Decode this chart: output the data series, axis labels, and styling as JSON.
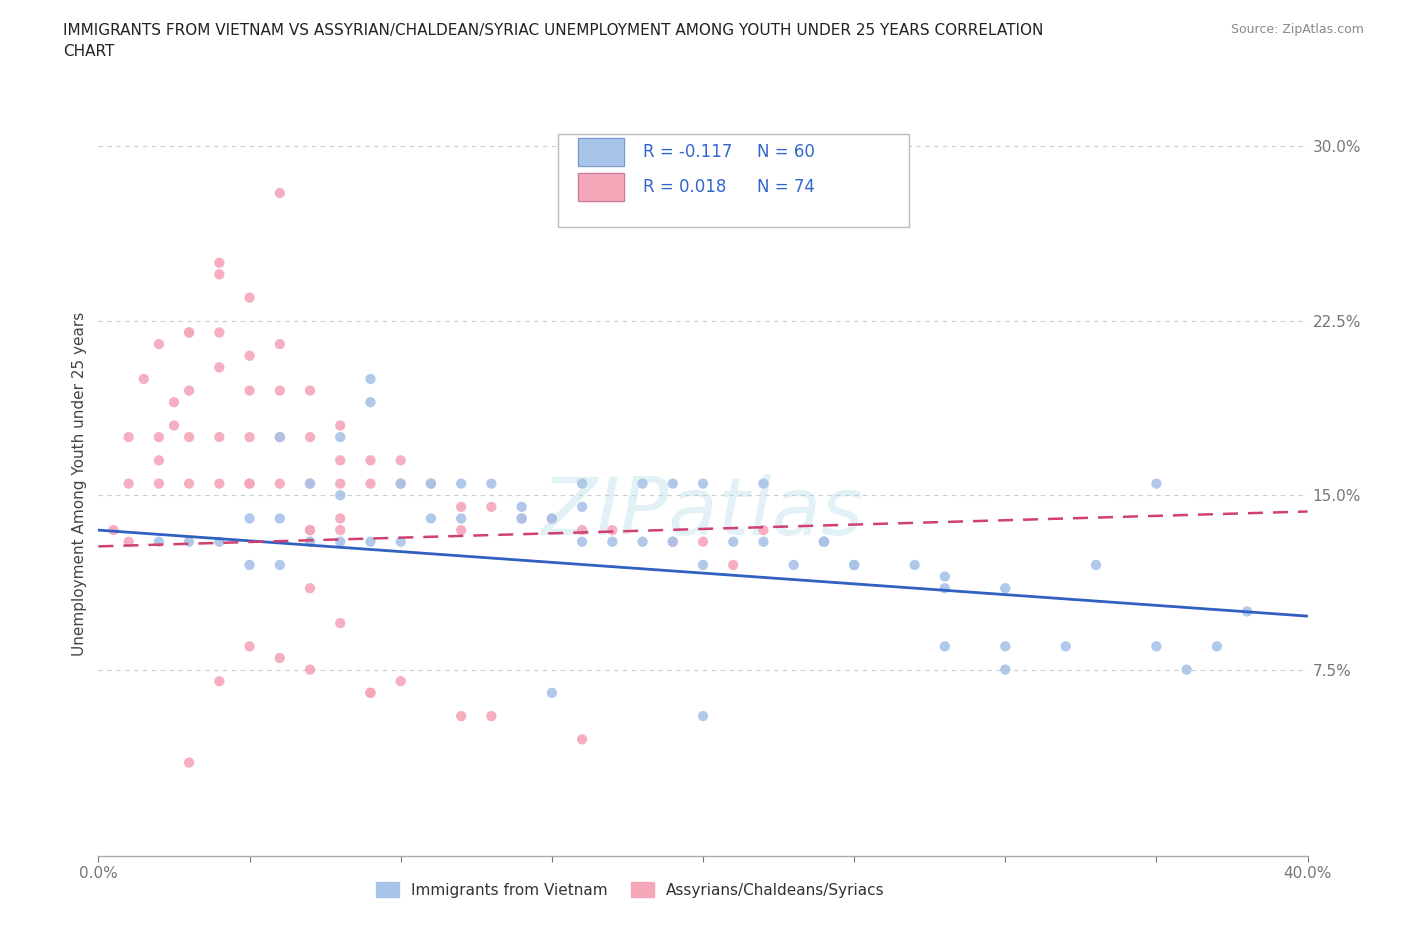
{
  "title": "IMMIGRANTS FROM VIETNAM VS ASSYRIAN/CHALDEAN/SYRIAC UNEMPLOYMENT AMONG YOUTH UNDER 25 YEARS CORRELATION\nCHART",
  "source": "Source: ZipAtlas.com",
  "ylabel": "Unemployment Among Youth under 25 years",
  "xlabel": "",
  "xlim": [
    0.0,
    0.4
  ],
  "ylim": [
    -0.005,
    0.315
  ],
  "yticks": [
    0.075,
    0.15,
    0.225,
    0.3
  ],
  "ytick_labels": [
    "7.5%",
    "15.0%",
    "22.5%",
    "30.0%"
  ],
  "xticks": [
    0.0,
    0.05,
    0.1,
    0.15,
    0.2,
    0.25,
    0.3,
    0.35,
    0.4
  ],
  "xtick_labels": [
    "0.0%",
    "",
    "",
    "",
    "",
    "",
    "",
    "",
    "40.0%"
  ],
  "R_blue": -0.117,
  "N_blue": 60,
  "R_pink": 0.018,
  "N_pink": 74,
  "color_blue": "#a8c4e8",
  "color_pink": "#f4a7b9",
  "trendline_blue": "#3060c0",
  "trendline_pink": "#d04070",
  "watermark": "ZIPatlas",
  "blue_scatter_x": [
    0.02,
    0.03,
    0.04,
    0.05,
    0.05,
    0.06,
    0.06,
    0.07,
    0.07,
    0.08,
    0.08,
    0.09,
    0.09,
    0.09,
    0.1,
    0.1,
    0.11,
    0.11,
    0.12,
    0.12,
    0.13,
    0.14,
    0.15,
    0.16,
    0.17,
    0.18,
    0.19,
    0.2,
    0.21,
    0.22,
    0.23,
    0.24,
    0.25,
    0.27,
    0.28,
    0.3,
    0.33,
    0.35,
    0.37,
    0.2,
    0.16,
    0.14,
    0.19,
    0.22,
    0.28,
    0.3,
    0.35,
    0.18,
    0.24,
    0.15,
    0.16,
    0.2,
    0.25,
    0.28,
    0.3,
    0.32,
    0.36,
    0.38,
    0.06,
    0.08
  ],
  "blue_scatter_y": [
    0.13,
    0.13,
    0.13,
    0.14,
    0.12,
    0.14,
    0.12,
    0.155,
    0.13,
    0.15,
    0.13,
    0.2,
    0.19,
    0.13,
    0.155,
    0.13,
    0.155,
    0.14,
    0.155,
    0.14,
    0.155,
    0.145,
    0.14,
    0.145,
    0.13,
    0.13,
    0.13,
    0.155,
    0.13,
    0.13,
    0.12,
    0.13,
    0.12,
    0.12,
    0.115,
    0.085,
    0.12,
    0.155,
    0.085,
    0.12,
    0.155,
    0.14,
    0.155,
    0.155,
    0.11,
    0.11,
    0.085,
    0.155,
    0.13,
    0.065,
    0.13,
    0.055,
    0.12,
    0.085,
    0.075,
    0.085,
    0.075,
    0.1,
    0.175,
    0.175
  ],
  "pink_scatter_x": [
    0.005,
    0.01,
    0.01,
    0.01,
    0.015,
    0.02,
    0.02,
    0.02,
    0.025,
    0.03,
    0.03,
    0.03,
    0.03,
    0.04,
    0.04,
    0.04,
    0.04,
    0.04,
    0.05,
    0.05,
    0.05,
    0.05,
    0.06,
    0.06,
    0.06,
    0.06,
    0.07,
    0.07,
    0.07,
    0.07,
    0.08,
    0.08,
    0.08,
    0.09,
    0.09,
    0.1,
    0.1,
    0.11,
    0.12,
    0.12,
    0.13,
    0.14,
    0.15,
    0.16,
    0.17,
    0.19,
    0.2,
    0.22,
    0.24,
    0.08,
    0.07,
    0.06,
    0.05,
    0.05,
    0.04,
    0.025,
    0.02,
    0.03,
    0.05,
    0.07,
    0.09,
    0.13,
    0.16,
    0.21,
    0.08,
    0.07,
    0.1,
    0.12,
    0.08,
    0.06,
    0.04,
    0.03,
    0.07,
    0.09
  ],
  "pink_scatter_y": [
    0.135,
    0.175,
    0.155,
    0.13,
    0.2,
    0.215,
    0.175,
    0.155,
    0.18,
    0.22,
    0.195,
    0.175,
    0.155,
    0.245,
    0.22,
    0.205,
    0.175,
    0.155,
    0.21,
    0.195,
    0.175,
    0.155,
    0.215,
    0.195,
    0.175,
    0.155,
    0.195,
    0.175,
    0.155,
    0.13,
    0.18,
    0.165,
    0.155,
    0.165,
    0.155,
    0.165,
    0.155,
    0.155,
    0.145,
    0.135,
    0.145,
    0.14,
    0.14,
    0.135,
    0.135,
    0.13,
    0.13,
    0.135,
    0.13,
    0.14,
    0.135,
    0.28,
    0.235,
    0.155,
    0.25,
    0.19,
    0.165,
    0.22,
    0.085,
    0.075,
    0.065,
    0.055,
    0.045,
    0.12,
    0.135,
    0.11,
    0.07,
    0.055,
    0.095,
    0.08,
    0.07,
    0.035,
    0.135,
    0.065
  ],
  "blue_trendline_x0": 0.0,
  "blue_trendline_y0": 0.135,
  "blue_trendline_x1": 0.4,
  "blue_trendline_y1": 0.098,
  "pink_trendline_x0": 0.0,
  "pink_trendline_y0": 0.128,
  "pink_trendline_x1": 0.4,
  "pink_trendline_y1": 0.143
}
